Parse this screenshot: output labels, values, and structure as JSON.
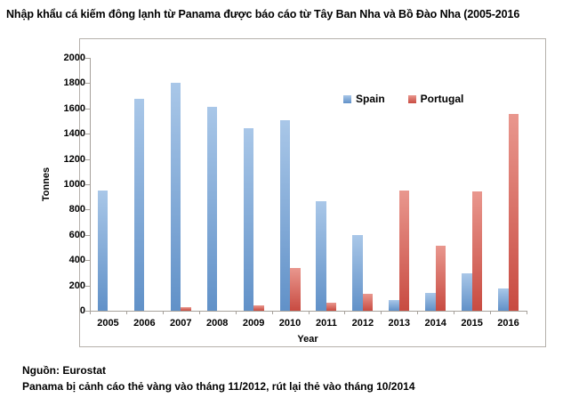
{
  "title": "Nhập khẩu cá kiếm đông lạnh từ Panama được báo cáo từ Tây Ban Nha và Bồ Đào Nha (2005-2016",
  "chart_data": {
    "type": "bar",
    "categories": [
      "2005",
      "2006",
      "2007",
      "2008",
      "2009",
      "2010",
      "2011",
      "2012",
      "2013",
      "2014",
      "2015",
      "2016"
    ],
    "series": [
      {
        "name": "Spain",
        "color_top": "#a9c7e8",
        "color_bottom": "#6191c8",
        "values": [
          950,
          1675,
          1800,
          1615,
          1445,
          1510,
          865,
          600,
          85,
          140,
          295,
          175
        ]
      },
      {
        "name": "Portugal",
        "color_top": "#e9978e",
        "color_bottom": "#c84b41",
        "values": [
          0,
          0,
          30,
          0,
          45,
          340,
          60,
          135,
          950,
          515,
          945,
          1555
        ]
      }
    ],
    "xlabel": "Year",
    "ylabel": "Tonnes",
    "ylim": [
      0,
      2000
    ],
    "ytick_step": 200,
    "grid": false,
    "legend_position": "top-right-inside"
  },
  "footer": {
    "source": "Nguồn: Eurostat",
    "note": "Panama bị cảnh cáo thẻ vàng vào tháng 11/2012, rút lại thẻ vào tháng 10/2014"
  }
}
